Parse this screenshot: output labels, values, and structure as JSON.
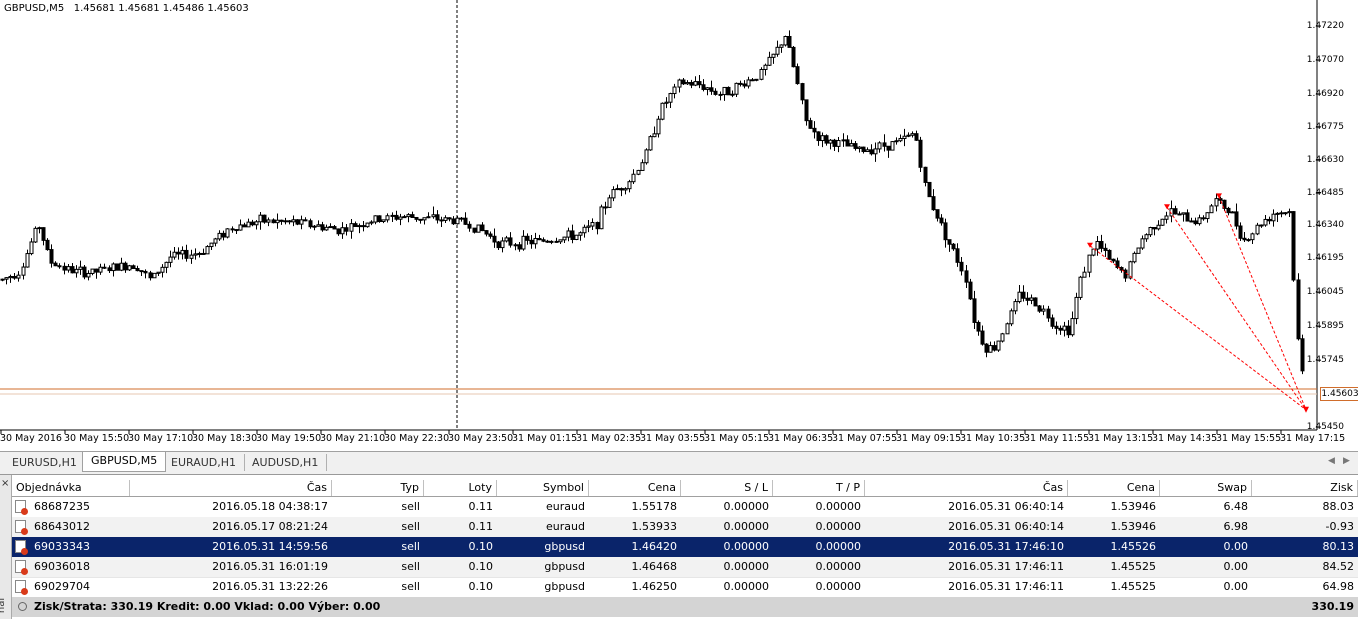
{
  "chart": {
    "symbol": "GBPUSD,M5",
    "ohlc": "1.45681 1.45681 1.45486 1.45603",
    "price_labels": [
      "1.47220",
      "1.47070",
      "1.46920",
      "1.46775",
      "1.46630",
      "1.46485",
      "1.46340",
      "1.46195",
      "1.46045",
      "1.45895",
      "1.45745",
      "1.45450"
    ],
    "current_price": "1.45603",
    "time_labels": [
      "30 May 2016",
      "30 May 15:50",
      "30 May 17:10",
      "30 May 18:30",
      "30 May 19:50",
      "30 May 21:10",
      "30 May 22:30",
      "30 May 23:50",
      "31 May 01:15",
      "31 May 02:35",
      "31 May 03:55",
      "31 May 05:15",
      "31 May 06:35",
      "31 May 07:55",
      "31 May 09:15",
      "31 May 10:35",
      "31 May 11:55",
      "31 May 13:15",
      "31 May 14:35",
      "31 May 15:55",
      "31 May 17:15"
    ],
    "colors": {
      "candle": "#000000",
      "current_price_line": "#d06d2b",
      "trade_line": "#ff0000"
    }
  },
  "tabs": [
    "EURUSD,H1",
    "GBPUSD,M5",
    "EURAUD,H1",
    "AUDUSD,H1"
  ],
  "active_tab": "GBPUSD,M5",
  "terminal": {
    "close_icon": "×",
    "side_label": "nal",
    "columns": [
      "Objednávka",
      "Čas",
      "Typ",
      "Loty",
      "Symbol",
      "Cena",
      "S / L",
      "T / P",
      "Čas",
      "Cena",
      "Swap",
      "Zisk"
    ],
    "rows": [
      [
        "68687235",
        "2016.05.18 04:38:17",
        "sell",
        "0.11",
        "euraud",
        "1.55178",
        "0.00000",
        "0.00000",
        "2016.05.31 06:40:14",
        "1.53946",
        "6.48",
        "88.03"
      ],
      [
        "68643012",
        "2016.05.17 08:21:24",
        "sell",
        "0.11",
        "euraud",
        "1.53933",
        "0.00000",
        "0.00000",
        "2016.05.31 06:40:14",
        "1.53946",
        "6.98",
        "-0.93"
      ],
      [
        "69033343",
        "2016.05.31 14:59:56",
        "sell",
        "0.10",
        "gbpusd",
        "1.46420",
        "0.00000",
        "0.00000",
        "2016.05.31 17:46:10",
        "1.45526",
        "0.00",
        "80.13"
      ],
      [
        "69036018",
        "2016.05.31 16:01:19",
        "sell",
        "0.10",
        "gbpusd",
        "1.46468",
        "0.00000",
        "0.00000",
        "2016.05.31 17:46:11",
        "1.45525",
        "0.00",
        "84.52"
      ],
      [
        "69029704",
        "2016.05.31 13:22:26",
        "sell",
        "0.10",
        "gbpusd",
        "1.46250",
        "0.00000",
        "0.00000",
        "2016.05.31 17:46:11",
        "1.45525",
        "0.00",
        "64.98"
      ]
    ],
    "selected_row": 2,
    "summary": "Zisk/Strata: 330.19  Kredit: 0.00  Vklad: 0.00  Výber: 0.00",
    "summary_total": "330.19"
  }
}
